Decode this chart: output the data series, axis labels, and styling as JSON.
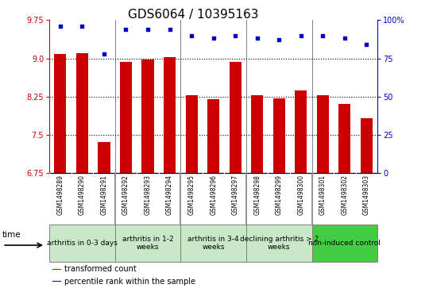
{
  "title": "GDS6064 / 10395163",
  "samples": [
    "GSM1498289",
    "GSM1498290",
    "GSM1498291",
    "GSM1498292",
    "GSM1498293",
    "GSM1498294",
    "GSM1498295",
    "GSM1498296",
    "GSM1498297",
    "GSM1498298",
    "GSM1498299",
    "GSM1498300",
    "GSM1498301",
    "GSM1498302",
    "GSM1498303"
  ],
  "bar_values": [
    9.08,
    9.1,
    7.35,
    8.93,
    8.98,
    9.02,
    8.28,
    8.2,
    8.93,
    8.28,
    8.22,
    8.37,
    8.28,
    8.1,
    7.82
  ],
  "dot_values": [
    96,
    96,
    78,
    94,
    94,
    94,
    90,
    88,
    90,
    88,
    87,
    90,
    90,
    88,
    84
  ],
  "ylim_left": [
    6.75,
    9.75
  ],
  "ylim_right": [
    0,
    100
  ],
  "yticks_left": [
    6.75,
    7.5,
    8.25,
    9.0,
    9.75
  ],
  "yticks_right": [
    0,
    25,
    50,
    75,
    100
  ],
  "bar_color": "#cc0000",
  "dot_color": "#0000cc",
  "plot_bg": "#ffffff",
  "groups": [
    {
      "label": "arthritis in 0-3 days",
      "start": 0,
      "end": 3,
      "color": "#c8e8c8"
    },
    {
      "label": "arthritis in 1-2\nweeks",
      "start": 3,
      "end": 6,
      "color": "#c8e8c8"
    },
    {
      "label": "arthritis in 3-4\nweeks",
      "start": 6,
      "end": 9,
      "color": "#c8e8c8"
    },
    {
      "label": "declining arthritis > 2\nweeks",
      "start": 9,
      "end": 12,
      "color": "#c8e8c8"
    },
    {
      "label": "non-induced control",
      "start": 12,
      "end": 15,
      "color": "#44cc44"
    }
  ],
  "group_dividers": [
    3,
    6,
    9,
    12
  ],
  "legend_labels": [
    "transformed count",
    "percentile rank within the sample"
  ],
  "legend_colors": [
    "#cc0000",
    "#0000cc"
  ],
  "title_fontsize": 11,
  "tick_fontsize": 7,
  "sample_fontsize": 5.5,
  "group_fontsize": 6.5,
  "legend_fontsize": 7
}
